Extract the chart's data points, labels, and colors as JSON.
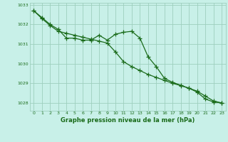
{
  "line1": [
    1032.7,
    1032.35,
    1032.0,
    1031.75,
    1031.3,
    1031.3,
    1031.2,
    1031.2,
    1031.45,
    1031.2,
    1031.5,
    1031.6,
    1031.65,
    1031.3,
    1030.35,
    1029.85,
    1029.25,
    1029.05,
    1028.9,
    1028.75,
    1028.55,
    1028.2,
    1028.05,
    1028.0
  ],
  "line2": [
    1032.7,
    1032.3,
    1031.95,
    1031.65,
    1031.55,
    1031.45,
    1031.35,
    1031.25,
    1031.15,
    1031.05,
    1030.6,
    1030.1,
    1029.85,
    1029.65,
    1029.45,
    1029.3,
    1029.15,
    1029.0,
    1028.88,
    1028.75,
    1028.6,
    1028.35,
    1028.1,
    1028.0
  ],
  "x": [
    0,
    1,
    2,
    3,
    4,
    5,
    6,
    7,
    8,
    9,
    10,
    11,
    12,
    13,
    14,
    15,
    16,
    17,
    18,
    19,
    20,
    21,
    22,
    23
  ],
  "ylim": [
    1027.6,
    1033.1
  ],
  "yticks": [
    1028,
    1029,
    1030,
    1031,
    1032,
    1033
  ],
  "xlabel": "Graphe pression niveau de la mer (hPa)",
  "line_color": "#1a6b1a",
  "bg_color": "#c8f0e8",
  "grid_color": "#9ecfbe",
  "marker": "+",
  "markersize": 4,
  "linewidth": 0.9
}
